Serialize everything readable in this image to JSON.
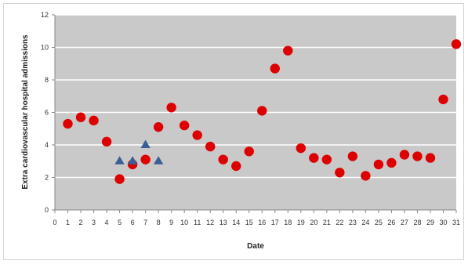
{
  "chart_data": {
    "type": "scatter",
    "title": "",
    "xlabel": "Date",
    "ylabel": "Extra cardiovascular hospital admissions",
    "xlim": [
      0,
      31
    ],
    "ylim": [
      0,
      12
    ],
    "x_ticks": [
      0,
      1,
      2,
      3,
      4,
      5,
      6,
      7,
      8,
      9,
      10,
      11,
      12,
      13,
      14,
      15,
      16,
      17,
      18,
      19,
      20,
      21,
      22,
      23,
      24,
      25,
      26,
      27,
      28,
      29,
      30,
      31
    ],
    "y_ticks": [
      0,
      2,
      4,
      6,
      8,
      10,
      12
    ],
    "grid": "horizontal",
    "legend": "none",
    "series": [
      {
        "marker": "circle",
        "color": "#dd0000",
        "points": [
          {
            "x": 1,
            "y": 5.3
          },
          {
            "x": 2,
            "y": 5.7
          },
          {
            "x": 3,
            "y": 5.5
          },
          {
            "x": 4,
            "y": 4.2
          },
          {
            "x": 5,
            "y": 1.9
          },
          {
            "x": 6,
            "y": 2.8
          },
          {
            "x": 7,
            "y": 3.1
          },
          {
            "x": 8,
            "y": 5.1
          },
          {
            "x": 9,
            "y": 6.3
          },
          {
            "x": 10,
            "y": 5.2
          },
          {
            "x": 11,
            "y": 4.6
          },
          {
            "x": 12,
            "y": 3.9
          },
          {
            "x": 13,
            "y": 3.1
          },
          {
            "x": 14,
            "y": 2.7
          },
          {
            "x": 15,
            "y": 3.6
          },
          {
            "x": 16,
            "y": 6.1
          },
          {
            "x": 17,
            "y": 8.7
          },
          {
            "x": 18,
            "y": 9.8
          },
          {
            "x": 19,
            "y": 3.8
          },
          {
            "x": 20,
            "y": 3.2
          },
          {
            "x": 21,
            "y": 3.1
          },
          {
            "x": 22,
            "y": 2.3
          },
          {
            "x": 23,
            "y": 3.3
          },
          {
            "x": 24,
            "y": 2.1
          },
          {
            "x": 25,
            "y": 2.8
          },
          {
            "x": 26,
            "y": 2.9
          },
          {
            "x": 27,
            "y": 3.4
          },
          {
            "x": 28,
            "y": 3.3
          },
          {
            "x": 29,
            "y": 3.2
          },
          {
            "x": 30,
            "y": 6.8
          },
          {
            "x": 31,
            "y": 10.2
          }
        ]
      },
      {
        "marker": "triangle",
        "color": "#3a5f96",
        "points": [
          {
            "x": 5,
            "y": 3.0
          },
          {
            "x": 6,
            "y": 3.0
          },
          {
            "x": 7,
            "y": 4.0
          },
          {
            "x": 8,
            "y": 3.0
          }
        ]
      }
    ]
  }
}
